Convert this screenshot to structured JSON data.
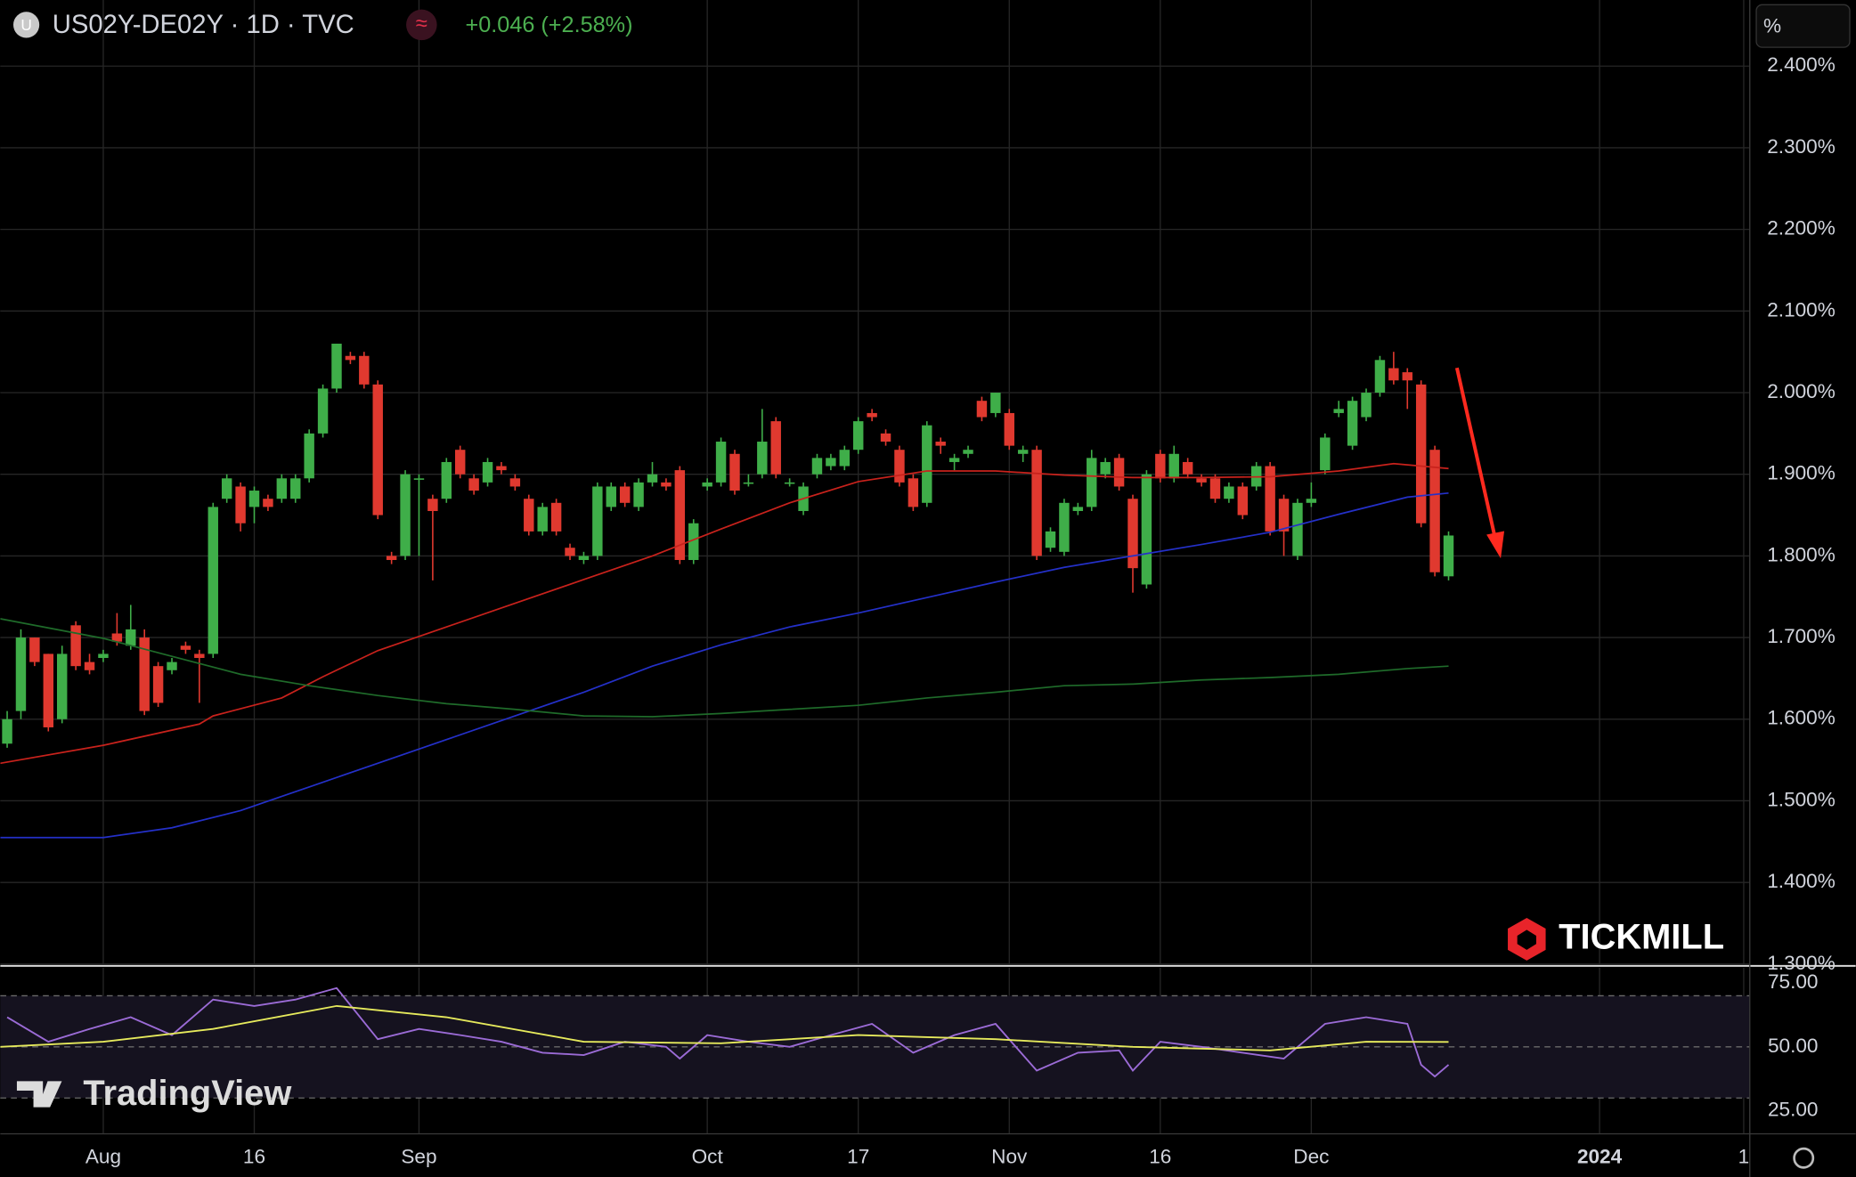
{
  "header": {
    "icon": "U",
    "symbol": "US02Y-DE02Y · 1D · TVC",
    "indicator": "≈",
    "change": "+0.046 (+2.58%)",
    "unit": "%"
  },
  "watermarks": {
    "broker": "TICKMILL",
    "platform": "TradingView"
  },
  "chart_data": [
    {
      "type": "candlestick",
      "up_color": "#3fae49",
      "down_color": "#e0392f",
      "x": [
        -7,
        -6,
        -5,
        -4,
        -3,
        -2,
        -1,
        0,
        1,
        2,
        3,
        4,
        5,
        6,
        7,
        8,
        9,
        10,
        11,
        12,
        13,
        14,
        15,
        16,
        17,
        18,
        19,
        20,
        21,
        22,
        23,
        24,
        25,
        26,
        27,
        28,
        29,
        30,
        31,
        32,
        33,
        34,
        35,
        36,
        37,
        38,
        39,
        40,
        41,
        42,
        43,
        44,
        45,
        46,
        47,
        48,
        49,
        50,
        51,
        52,
        53,
        54,
        55,
        56,
        57,
        58,
        59,
        60,
        61,
        62,
        63,
        64,
        65,
        66,
        67,
        68,
        69,
        70,
        71,
        72,
        73,
        74,
        75,
        76,
        77,
        78,
        79,
        80,
        81,
        82,
        83,
        84,
        85,
        86,
        87,
        88,
        89,
        90,
        91,
        92,
        93,
        94,
        95,
        96,
        97,
        98
      ],
      "open": [
        1.57,
        1.61,
        1.7,
        1.68,
        1.6,
        1.715,
        1.67,
        1.675,
        1.705,
        1.69,
        1.7,
        1.665,
        1.66,
        1.69,
        1.68,
        1.68,
        1.87,
        1.885,
        1.86,
        1.87,
        1.87,
        1.87,
        1.895,
        1.95,
        2.005,
        2.045,
        2.045,
        2.01,
        1.8,
        1.8,
        1.895,
        1.87,
        1.87,
        1.93,
        1.895,
        1.89,
        1.91,
        1.895,
        1.87,
        1.83,
        1.865,
        1.81,
        1.795,
        1.8,
        1.86,
        1.885,
        1.86,
        1.89,
        1.89,
        1.905,
        1.795,
        1.885,
        1.89,
        1.925,
        1.89,
        1.9,
        1.965,
        1.89,
        1.855,
        1.9,
        1.91,
        1.91,
        1.93,
        1.975,
        1.95,
        1.93,
        1.895,
        1.865,
        1.94,
        1.915,
        1.925,
        1.99,
        1.975,
        1.975,
        1.925,
        1.93,
        1.81,
        1.805,
        1.855,
        1.86,
        1.9,
        1.92,
        1.87,
        1.765,
        1.925,
        1.895,
        1.915,
        1.895,
        1.895,
        1.87,
        1.885,
        1.885,
        1.91,
        1.87,
        1.8,
        1.865,
        1.905,
        1.975,
        1.935,
        1.97,
        2.0,
        2.03,
        2.025,
        2.01,
        1.93,
        1.775
      ],
      "high": [
        1.61,
        1.71,
        1.7,
        1.68,
        1.69,
        1.72,
        1.68,
        1.685,
        1.73,
        1.74,
        1.71,
        1.67,
        1.675,
        1.695,
        1.685,
        1.865,
        1.9,
        1.89,
        1.885,
        1.875,
        1.9,
        1.9,
        1.955,
        2.01,
        2.06,
        2.05,
        2.05,
        2.015,
        1.805,
        1.905,
        1.9,
        1.875,
        1.92,
        1.935,
        1.9,
        1.92,
        1.915,
        1.9,
        1.875,
        1.865,
        1.87,
        1.815,
        1.805,
        1.89,
        1.89,
        1.89,
        1.895,
        1.915,
        1.895,
        1.91,
        1.845,
        1.895,
        1.945,
        1.93,
        1.9,
        1.98,
        1.97,
        1.895,
        1.89,
        1.925,
        1.925,
        1.935,
        1.97,
        1.98,
        1.955,
        1.935,
        1.9,
        1.965,
        1.945,
        1.925,
        1.935,
        1.995,
        2.0,
        1.98,
        1.935,
        1.935,
        1.835,
        1.87,
        1.865,
        1.93,
        1.92,
        1.925,
        1.875,
        1.905,
        1.93,
        1.935,
        1.92,
        1.9,
        1.9,
        1.89,
        1.89,
        1.915,
        1.915,
        1.875,
        1.87,
        1.89,
        1.95,
        1.99,
        1.995,
        2.005,
        2.045,
        2.05,
        2.03,
        2.015,
        1.935,
        1.83
      ],
      "low": [
        1.565,
        1.6,
        1.665,
        1.585,
        1.595,
        1.66,
        1.655,
        1.67,
        1.69,
        1.685,
        1.605,
        1.615,
        1.655,
        1.68,
        1.62,
        1.675,
        1.865,
        1.83,
        1.84,
        1.855,
        1.865,
        1.865,
        1.89,
        1.945,
        2.0,
        2.035,
        2.005,
        1.845,
        1.79,
        1.795,
        1.8,
        1.77,
        1.865,
        1.895,
        1.875,
        1.885,
        1.9,
        1.88,
        1.825,
        1.825,
        1.825,
        1.795,
        1.79,
        1.795,
        1.855,
        1.86,
        1.855,
        1.885,
        1.88,
        1.79,
        1.79,
        1.88,
        1.885,
        1.875,
        1.885,
        1.895,
        1.895,
        1.885,
        1.85,
        1.895,
        1.905,
        1.905,
        1.925,
        1.965,
        1.935,
        1.885,
        1.855,
        1.86,
        1.925,
        1.905,
        1.92,
        1.965,
        1.97,
        1.93,
        1.915,
        1.795,
        1.805,
        1.8,
        1.85,
        1.855,
        1.895,
        1.88,
        1.755,
        1.76,
        1.89,
        1.89,
        1.895,
        1.885,
        1.865,
        1.865,
        1.845,
        1.88,
        1.825,
        1.8,
        1.795,
        1.86,
        1.9,
        1.97,
        1.93,
        1.965,
        1.995,
        2.01,
        1.98,
        1.835,
        1.775,
        1.77
      ],
      "close": [
        1.6,
        1.7,
        1.67,
        1.59,
        1.68,
        1.665,
        1.66,
        1.68,
        1.695,
        1.71,
        1.61,
        1.62,
        1.67,
        1.685,
        1.675,
        1.86,
        1.895,
        1.84,
        1.88,
        1.86,
        1.895,
        1.895,
        1.95,
        2.005,
        2.06,
        2.04,
        2.01,
        1.85,
        1.795,
        1.9,
        1.895,
        1.855,
        1.915,
        1.9,
        1.88,
        1.915,
        1.905,
        1.885,
        1.83,
        1.86,
        1.83,
        1.8,
        1.8,
        1.885,
        1.885,
        1.865,
        1.89,
        1.9,
        1.885,
        1.795,
        1.84,
        1.89,
        1.94,
        1.88,
        1.89,
        1.94,
        1.9,
        1.89,
        1.885,
        1.92,
        1.92,
        1.93,
        1.965,
        1.97,
        1.94,
        1.89,
        1.86,
        1.96,
        1.935,
        1.92,
        1.93,
        1.97,
        2.0,
        1.935,
        1.93,
        1.8,
        1.83,
        1.865,
        1.86,
        1.92,
        1.915,
        1.885,
        1.785,
        1.9,
        1.895,
        1.925,
        1.9,
        1.89,
        1.87,
        1.885,
        1.85,
        1.91,
        1.83,
        1.83,
        1.865,
        1.87,
        1.945,
        1.98,
        1.99,
        2.0,
        2.04,
        2.015,
        2.015,
        1.84,
        1.78,
        1.825
      ],
      "overlays": [
        {
          "color": "#c8221c",
          "x": [
            -7.5,
            0,
            7,
            8,
            13,
            16,
            20,
            25,
            30,
            35,
            40,
            45,
            50,
            55,
            60,
            65,
            70,
            75,
            80,
            85,
            90,
            94,
            98
          ],
          "values": [
            1.546,
            1.568,
            1.594,
            1.604,
            1.626,
            1.652,
            1.684,
            1.713,
            1.742,
            1.771,
            1.8,
            1.833,
            1.865,
            1.891,
            1.904,
            1.904,
            1.899,
            1.896,
            1.896,
            1.897,
            1.904,
            1.913,
            1.907
          ]
        },
        {
          "color": "#2430c8",
          "x": [
            -7.5,
            0,
            5,
            10,
            15,
            20,
            25,
            30,
            35,
            40,
            45,
            50,
            55,
            60,
            65,
            70,
            75,
            80,
            85,
            90,
            95,
            98
          ],
          "values": [
            1.455,
            1.455,
            1.467,
            1.488,
            1.517,
            1.546,
            1.575,
            1.604,
            1.633,
            1.665,
            1.691,
            1.713,
            1.73,
            1.749,
            1.768,
            1.786,
            1.8,
            1.814,
            1.829,
            1.851,
            1.872,
            1.877
          ]
        },
        {
          "color": "#1f6b2a",
          "x": [
            -7.5,
            0,
            5,
            10,
            15,
            20,
            25,
            30,
            35,
            40,
            45,
            50,
            55,
            60,
            65,
            70,
            75,
            80,
            85,
            90,
            95,
            98
          ],
          "values": [
            1.723,
            1.699,
            1.677,
            1.655,
            1.641,
            1.629,
            1.619,
            1.612,
            1.604,
            1.603,
            1.607,
            1.612,
            1.617,
            1.626,
            1.633,
            1.641,
            1.643,
            1.648,
            1.651,
            1.655,
            1.662,
            1.665
          ]
        }
      ],
      "xlim": [
        -7.5,
        119.9
      ],
      "xticks": [
        {
          "value": 0,
          "label": "Aug"
        },
        {
          "value": 11,
          "label": "16"
        },
        {
          "value": 23,
          "label": "Sep"
        },
        {
          "value": 44,
          "label": "Oct"
        },
        {
          "value": 55,
          "label": "17"
        },
        {
          "value": 66,
          "label": "Nov"
        },
        {
          "value": 77,
          "label": "16"
        },
        {
          "value": 88,
          "label": "Dec"
        },
        {
          "value": 109,
          "label": "2024"
        },
        {
          "value": 119.5,
          "label": "1"
        }
      ],
      "ylim": [
        1.3,
        2.481
      ],
      "yticks": [
        {
          "value": 2.4,
          "label": "2.400%"
        },
        {
          "value": 2.3,
          "label": "2.300%"
        },
        {
          "value": 2.2,
          "label": "2.200%"
        },
        {
          "value": 2.1,
          "label": "2.100%"
        },
        {
          "value": 2.0,
          "label": "2.000%"
        },
        {
          "value": 1.9,
          "label": "1.900%"
        },
        {
          "value": 1.8,
          "label": "1.800%"
        },
        {
          "value": 1.7,
          "label": "1.700%"
        },
        {
          "value": 1.6,
          "label": "1.600%"
        },
        {
          "value": 1.5,
          "label": "1.500%"
        },
        {
          "value": 1.4,
          "label": "1.400%"
        },
        {
          "value": 1.3,
          "label": "1.300%"
        }
      ],
      "grid": true
    },
    {
      "type": "line",
      "series": [
        {
          "color": "#9b6bd6",
          "x": [
            -7,
            -4,
            -1,
            2,
            5,
            8,
            11,
            14,
            17,
            20,
            23,
            26,
            29,
            32,
            35,
            38,
            41,
            42,
            44,
            47,
            50,
            53,
            56,
            59,
            62,
            65,
            68,
            71,
            74,
            75,
            77,
            80,
            83,
            86,
            89,
            92,
            95,
            96,
            97,
            98
          ],
          "values": [
            61.6,
            52,
            57,
            61.6,
            54.6,
            68.5,
            66,
            68.5,
            73,
            53,
            57,
            54.6,
            52,
            47.7,
            46.8,
            52,
            50,
            45.4,
            54.6,
            52,
            50,
            54.6,
            59,
            47.7,
            54.6,
            59,
            40.7,
            47.7,
            48.6,
            40.7,
            52,
            50,
            47.7,
            45.4,
            59,
            61.6,
            59,
            43,
            38.4,
            43
          ]
        },
        {
          "color": "#e6ea5c",
          "x": [
            -7.5,
            0,
            8,
            17,
            25,
            35,
            45,
            55,
            65,
            75,
            85,
            92,
            98
          ],
          "values": [
            50,
            52,
            57,
            66,
            61.6,
            52,
            51.4,
            54.6,
            53,
            50,
            48.6,
            52,
            51.9
          ]
        }
      ],
      "xlim": [
        -7.5,
        119.9
      ],
      "ylim": [
        16.2,
        81
      ],
      "yticks": [
        {
          "value": 75,
          "label": "75.00"
        },
        {
          "value": 50,
          "label": "50.00"
        },
        {
          "value": 25,
          "label": "25.00"
        }
      ],
      "bands": [
        70,
        50,
        30
      ],
      "band_fill": "#15121f"
    }
  ]
}
